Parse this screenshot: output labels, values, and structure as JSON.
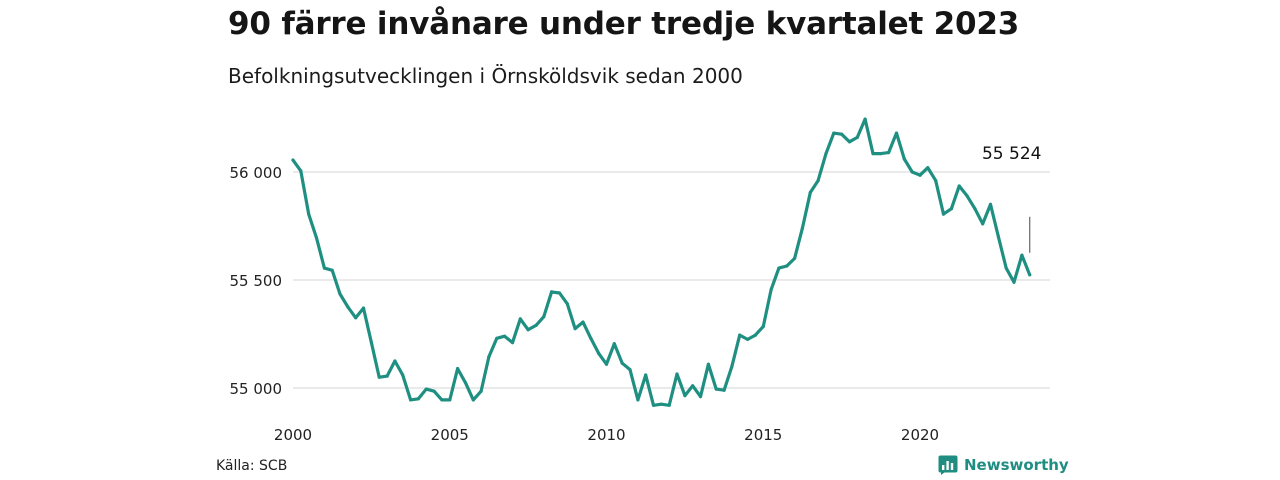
{
  "title": "90 färre invånare under tredje kvartalet 2023",
  "subtitle": "Befolkningsutvecklingen i Örnsköldsvik sedan 2000",
  "source": "Källa: SCB",
  "brand": "Newsworthy",
  "colors": {
    "line": "#1f8f82",
    "grid": "#dddddd",
    "brand": "#1f8d82"
  },
  "chart_data": {
    "type": "line",
    "title": "90 färre invånare under tredje kvartalet 2023",
    "xlabel": "",
    "ylabel": "",
    "xlim": [
      2000,
      2023.6
    ],
    "ylim": [
      54950,
      56250
    ],
    "x_ticks": [
      2000,
      2005,
      2010,
      2015,
      2020
    ],
    "x_tick_labels": [
      "2000",
      "2005",
      "2010",
      "2015",
      "2020"
    ],
    "y_ticks": [
      55000,
      55500,
      56000
    ],
    "y_tick_labels": [
      "55 000",
      "55 500",
      "56 000"
    ],
    "grid": "horizontal",
    "annotation": {
      "label": "55 524",
      "value": 55524
    },
    "series": [
      {
        "x": [
          2000.0,
          2000.25,
          2000.5,
          2000.75,
          2001.0,
          2001.25,
          2001.5,
          2001.75,
          2002.0,
          2002.25,
          2002.5,
          2002.75,
          2003.0,
          2003.25,
          2003.5,
          2003.75,
          2004.0,
          2004.25,
          2004.5,
          2004.75,
          2005.0,
          2005.25,
          2005.5,
          2005.75,
          2006.0,
          2006.25,
          2006.5,
          2006.75,
          2007.0,
          2007.25,
          2007.5,
          2007.75,
          2008.0,
          2008.25,
          2008.5,
          2008.75,
          2009.0,
          2009.25,
          2009.5,
          2009.75,
          2010.0,
          2010.25,
          2010.5,
          2010.75,
          2011.0,
          2011.25,
          2011.5,
          2011.75,
          2012.0,
          2012.25,
          2012.5,
          2012.75,
          2013.0,
          2013.25,
          2013.5,
          2013.75,
          2014.0,
          2014.25,
          2014.5,
          2014.75,
          2015.0,
          2015.25,
          2015.5,
          2015.75,
          2016.0,
          2016.25,
          2016.5,
          2016.75,
          2017.0,
          2017.25,
          2017.5,
          2017.75,
          2018.0,
          2018.25,
          2018.5,
          2018.75,
          2019.0,
          2019.25,
          2019.5,
          2019.75,
          2020.0,
          2020.25,
          2020.5,
          2020.75,
          2021.0,
          2021.25,
          2021.5,
          2021.75,
          2022.0,
          2022.25,
          2022.5,
          2022.75,
          2023.0,
          2023.25,
          2023.5
        ],
        "y": [
          56055,
          56005,
          55805,
          55695,
          55555,
          55545,
          55435,
          55375,
          55325,
          55370,
          55210,
          55050,
          55055,
          55125,
          55060,
          54945,
          54950,
          54995,
          54985,
          54945,
          54945,
          55090,
          55025,
          54945,
          54985,
          55145,
          55230,
          55240,
          55210,
          55320,
          55270,
          55290,
          55330,
          55445,
          55440,
          55390,
          55275,
          55305,
          55230,
          55160,
          55110,
          55205,
          55115,
          55085,
          54945,
          55060,
          54920,
          54925,
          54920,
          55065,
          54965,
          55010,
          54960,
          55110,
          54995,
          54990,
          55100,
          55245,
          55225,
          55245,
          55285,
          55455,
          55555,
          55565,
          55600,
          55740,
          55905,
          55960,
          56085,
          56180,
          56175,
          56140,
          56160,
          56245,
          56085,
          56085,
          56090,
          56180,
          56060,
          56000,
          55985,
          56020,
          55960,
          55805,
          55830,
          55935,
          55890,
          55830,
          55760,
          55850,
          55700,
          55555,
          55490,
          55615,
          55524
        ]
      }
    ]
  }
}
